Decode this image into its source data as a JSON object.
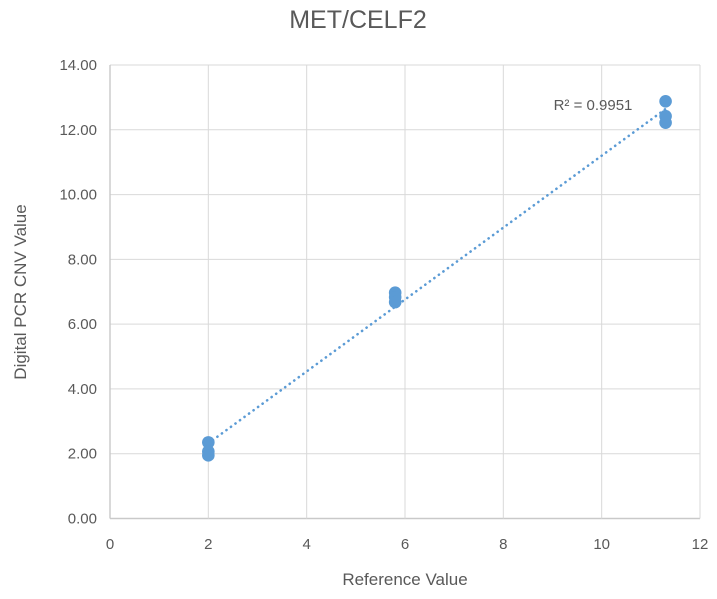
{
  "chart_data": {
    "type": "scatter",
    "title": "MET/CELF2",
    "xlabel": "Reference Value",
    "ylabel": "Digital PCR CNV Value",
    "xlim": [
      0,
      12
    ],
    "ylim": [
      0,
      14
    ],
    "grid": true,
    "legend_position": "none",
    "x_tick_values": [
      0,
      2,
      4,
      6,
      8,
      10,
      12
    ],
    "x_tick_labels": [
      "0",
      "2",
      "4",
      "6",
      "8",
      "10",
      "12"
    ],
    "y_tick_values": [
      0,
      2,
      4,
      6,
      8,
      10,
      12,
      14
    ],
    "y_tick_labels": [
      "0.00",
      "2.00",
      "4.00",
      "6.00",
      "8.00",
      "10.00",
      "12.00",
      "14.00"
    ],
    "series": [
      {
        "name": "MET/CELF2",
        "marker_color": "#5B9BD5",
        "points": [
          {
            "x": 2.0,
            "y": 2.35
          },
          {
            "x": 2.0,
            "y": 2.07
          },
          {
            "x": 2.0,
            "y": 1.95
          },
          {
            "x": 5.8,
            "y": 6.97
          },
          {
            "x": 5.8,
            "y": 6.83
          },
          {
            "x": 5.8,
            "y": 6.68
          },
          {
            "x": 11.3,
            "y": 12.88
          },
          {
            "x": 11.3,
            "y": 12.42
          },
          {
            "x": 11.3,
            "y": 12.22
          }
        ]
      }
    ],
    "trendline": {
      "style": "dotted",
      "color": "#5B9BD5",
      "slope": 1.11,
      "intercept": 0.1,
      "x_start": 2.0,
      "x_end": 11.3,
      "r2_label": "R² = 0.9951"
    }
  },
  "colors": {
    "marker": "#5B9BD5",
    "gridline": "#D9D9D9",
    "axis_line": "#C9C9C9",
    "text": "#595959",
    "background": "#FFFFFF"
  }
}
